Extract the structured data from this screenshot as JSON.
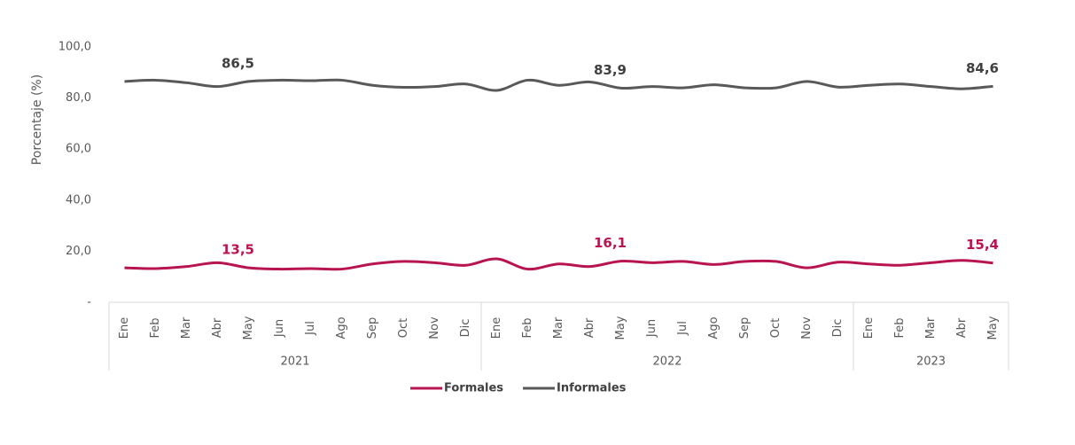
{
  "chart_data": {
    "type": "line",
    "ylabel": "Porcentaje (%)",
    "ylim": [
      0,
      100
    ],
    "yticks": [
      {
        "value": 0,
        "label": "-"
      },
      {
        "value": 20,
        "label": "20,0"
      },
      {
        "value": 40,
        "label": "40,0"
      },
      {
        "value": 60,
        "label": "60,0"
      },
      {
        "value": 80,
        "label": "80,0"
      },
      {
        "value": 100,
        "label": "100,0"
      }
    ],
    "groups": [
      {
        "name": "2021",
        "categories": [
          "Ene",
          "Feb",
          "Mar",
          "Abr",
          "May",
          "Jun",
          "Jul",
          "Ago",
          "Sep",
          "Oct",
          "Nov",
          "Dic"
        ]
      },
      {
        "name": "2022",
        "categories": [
          "Ene",
          "Feb",
          "Mar",
          "Abr",
          "May",
          "Jun",
          "Jul",
          "Ago",
          "Sep",
          "Oct",
          "Nov",
          "Dic"
        ]
      },
      {
        "name": "2023",
        "categories": [
          "Ene",
          "Feb",
          "Mar",
          "Abr",
          "May"
        ]
      }
    ],
    "series": [
      {
        "name": "Formales",
        "color": "#b8144f",
        "values": [
          13.5,
          13.2,
          14,
          15.5,
          13.5,
          13,
          13.2,
          13,
          15,
          16,
          15.5,
          14.5,
          17,
          13,
          15,
          14,
          16.1,
          15.5,
          16,
          14.8,
          16,
          16,
          13.5,
          15.7,
          15,
          14.5,
          15.5,
          16.4,
          15.4
        ],
        "value_labels": [
          null,
          null,
          null,
          null,
          "13,5",
          null,
          null,
          null,
          null,
          null,
          null,
          null,
          null,
          null,
          null,
          null,
          "16,1",
          null,
          null,
          null,
          null,
          null,
          null,
          null,
          null,
          null,
          null,
          null,
          "15,4"
        ]
      },
      {
        "name": "Informales",
        "color": "#595959",
        "values": [
          86.5,
          87,
          86,
          84.5,
          86.5,
          87,
          86.8,
          87,
          85,
          84.2,
          84.5,
          85.5,
          83,
          87,
          85,
          86.3,
          83.9,
          84.5,
          84,
          85.2,
          84,
          84,
          86.5,
          84.3,
          85,
          85.5,
          84.5,
          83.6,
          84.6
        ],
        "value_labels": [
          null,
          null,
          null,
          null,
          "86,5",
          null,
          null,
          null,
          null,
          null,
          null,
          null,
          null,
          null,
          null,
          null,
          "83,9",
          null,
          null,
          null,
          null,
          null,
          null,
          null,
          null,
          null,
          null,
          null,
          "84,6"
        ]
      }
    ],
    "legend": "bottom"
  }
}
